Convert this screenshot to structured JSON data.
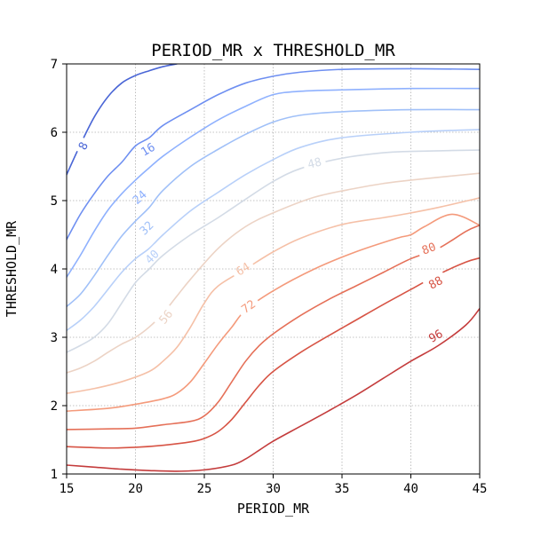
{
  "chart_data": {
    "type": "contour",
    "title": "PERIOD_MR x THRESHOLD_MR",
    "xlabel": "PERIOD_MR",
    "ylabel": "THRESHOLD_MR",
    "xlim": [
      15,
      45
    ],
    "ylim": [
      1,
      7
    ],
    "x_ticks": [
      15,
      20,
      25,
      30,
      35,
      40,
      45
    ],
    "y_ticks": [
      1,
      2,
      3,
      4,
      5,
      6,
      7
    ],
    "grid": true,
    "grid_style": "dotted",
    "colormap": "coolwarm",
    "levels": [
      {
        "value": 8,
        "label": "8",
        "color": "#4a66d6",
        "label_at": [
          16.2,
          5.8
        ],
        "points": [
          [
            15,
            5.38
          ],
          [
            16,
            5.82
          ],
          [
            17,
            6.22
          ],
          [
            18,
            6.52
          ],
          [
            19,
            6.72
          ],
          [
            20,
            6.83
          ],
          [
            21,
            6.9
          ],
          [
            22,
            6.96
          ],
          [
            23,
            7.0
          ]
        ]
      },
      {
        "value": 16,
        "label": "16",
        "color": "#6e8ff1",
        "label_at": [
          20.9,
          5.75
        ],
        "points": [
          [
            15,
            4.43
          ],
          [
            16,
            4.8
          ],
          [
            17,
            5.1
          ],
          [
            18,
            5.36
          ],
          [
            19,
            5.56
          ],
          [
            20,
            5.8
          ],
          [
            21,
            5.92
          ],
          [
            22,
            6.1
          ],
          [
            24,
            6.33
          ],
          [
            26,
            6.55
          ],
          [
            28,
            6.72
          ],
          [
            30,
            6.82
          ],
          [
            32,
            6.88
          ],
          [
            35,
            6.92
          ],
          [
            40,
            6.93
          ],
          [
            45,
            6.92
          ]
        ]
      },
      {
        "value": 24,
        "label": "24",
        "color": "#8fb1fe",
        "label_at": [
          20.3,
          5.05
        ],
        "points": [
          [
            15,
            3.88
          ],
          [
            16,
            4.2
          ],
          [
            17,
            4.55
          ],
          [
            18,
            4.86
          ],
          [
            19,
            5.1
          ],
          [
            20,
            5.3
          ],
          [
            21,
            5.48
          ],
          [
            22,
            5.65
          ],
          [
            24,
            5.93
          ],
          [
            26,
            6.18
          ],
          [
            28,
            6.38
          ],
          [
            30,
            6.55
          ],
          [
            32,
            6.6
          ],
          [
            35,
            6.62
          ],
          [
            40,
            6.64
          ],
          [
            45,
            6.64
          ]
        ]
      },
      {
        "value": 32,
        "label": "32",
        "color": "#a0c0f8",
        "label_at": [
          20.8,
          4.6
        ],
        "points": [
          [
            15,
            3.45
          ],
          [
            16,
            3.63
          ],
          [
            17,
            3.9
          ],
          [
            18,
            4.2
          ],
          [
            19,
            4.48
          ],
          [
            20,
            4.7
          ],
          [
            21,
            4.9
          ],
          [
            22,
            5.15
          ],
          [
            24,
            5.5
          ],
          [
            26,
            5.75
          ],
          [
            28,
            5.97
          ],
          [
            30,
            6.15
          ],
          [
            32,
            6.25
          ],
          [
            35,
            6.3
          ],
          [
            40,
            6.33
          ],
          [
            45,
            6.33
          ]
        ]
      },
      {
        "value": 40,
        "label": "40",
        "color": "#b8d0f9",
        "label_at": [
          21.2,
          4.18
        ],
        "points": [
          [
            15,
            3.1
          ],
          [
            16,
            3.25
          ],
          [
            17,
            3.45
          ],
          [
            18,
            3.7
          ],
          [
            19,
            3.95
          ],
          [
            20,
            4.15
          ],
          [
            21,
            4.3
          ],
          [
            22,
            4.5
          ],
          [
            24,
            4.85
          ],
          [
            26,
            5.12
          ],
          [
            28,
            5.38
          ],
          [
            30,
            5.6
          ],
          [
            32,
            5.78
          ],
          [
            35,
            5.92
          ],
          [
            40,
            6.0
          ],
          [
            45,
            6.04
          ]
        ]
      },
      {
        "value": 48,
        "label": "48",
        "color": "#d3dbe6",
        "label_at": [
          33.0,
          5.55
        ],
        "points": [
          [
            15,
            2.78
          ],
          [
            16,
            2.88
          ],
          [
            17,
            3.0
          ],
          [
            18,
            3.2
          ],
          [
            19,
            3.5
          ],
          [
            20,
            3.8
          ],
          [
            21,
            4.0
          ],
          [
            22,
            4.2
          ],
          [
            24,
            4.5
          ],
          [
            26,
            4.75
          ],
          [
            28,
            5.02
          ],
          [
            30,
            5.28
          ],
          [
            32,
            5.47
          ],
          [
            35,
            5.62
          ],
          [
            38,
            5.7
          ],
          [
            40,
            5.72
          ],
          [
            45,
            5.74
          ]
        ]
      },
      {
        "value": 56,
        "label": "56",
        "color": "#ecd3c5",
        "label_at": [
          22.2,
          3.3
        ],
        "points": [
          [
            15,
            2.48
          ],
          [
            16,
            2.55
          ],
          [
            17,
            2.65
          ],
          [
            18,
            2.78
          ],
          [
            19,
            2.9
          ],
          [
            20,
            3.0
          ],
          [
            21,
            3.15
          ],
          [
            22,
            3.35
          ],
          [
            23,
            3.6
          ],
          [
            24,
            3.85
          ],
          [
            26,
            4.3
          ],
          [
            28,
            4.62
          ],
          [
            30,
            4.82
          ],
          [
            33,
            5.05
          ],
          [
            36,
            5.18
          ],
          [
            38,
            5.25
          ],
          [
            40,
            5.3
          ],
          [
            45,
            5.4
          ]
        ]
      },
      {
        "value": 64,
        "label": "64",
        "color": "#f5c0a7",
        "label_at": [
          27.8,
          4.0
        ],
        "points": [
          [
            15,
            2.18
          ],
          [
            17,
            2.25
          ],
          [
            19,
            2.35
          ],
          [
            21,
            2.5
          ],
          [
            22,
            2.65
          ],
          [
            23,
            2.85
          ],
          [
            24,
            3.15
          ],
          [
            25,
            3.5
          ],
          [
            26,
            3.75
          ],
          [
            28,
            4.0
          ],
          [
            30,
            4.25
          ],
          [
            32,
            4.45
          ],
          [
            35,
            4.65
          ],
          [
            38,
            4.75
          ],
          [
            40,
            4.82
          ],
          [
            42,
            4.9
          ],
          [
            45,
            5.04
          ]
        ]
      },
      {
        "value": 72,
        "label": "72",
        "color": "#f49a7b",
        "label_at": [
          28.2,
          3.45
        ],
        "points": [
          [
            15,
            1.92
          ],
          [
            18,
            1.96
          ],
          [
            20,
            2.02
          ],
          [
            22,
            2.1
          ],
          [
            23,
            2.18
          ],
          [
            24,
            2.35
          ],
          [
            25,
            2.62
          ],
          [
            26,
            2.9
          ],
          [
            27,
            3.15
          ],
          [
            28,
            3.4
          ],
          [
            30,
            3.68
          ],
          [
            33,
            4.0
          ],
          [
            36,
            4.25
          ],
          [
            39,
            4.45
          ],
          [
            40,
            4.5
          ],
          [
            41,
            4.62
          ],
          [
            43,
            4.8
          ],
          [
            45,
            4.64
          ]
        ]
      },
      {
        "value": 80,
        "label": "80",
        "color": "#e57058",
        "label_at": [
          41.3,
          4.3
        ],
        "points": [
          [
            15,
            1.65
          ],
          [
            18,
            1.66
          ],
          [
            20,
            1.67
          ],
          [
            22,
            1.72
          ],
          [
            24,
            1.77
          ],
          [
            25,
            1.85
          ],
          [
            26,
            2.05
          ],
          [
            27,
            2.35
          ],
          [
            28,
            2.65
          ],
          [
            29,
            2.88
          ],
          [
            30,
            3.05
          ],
          [
            32,
            3.32
          ],
          [
            34,
            3.55
          ],
          [
            36,
            3.75
          ],
          [
            38,
            3.95
          ],
          [
            40,
            4.15
          ],
          [
            42,
            4.3
          ],
          [
            44,
            4.55
          ],
          [
            45,
            4.64
          ]
        ]
      },
      {
        "value": 88,
        "label": "88",
        "color": "#d75445",
        "label_at": [
          41.8,
          3.8
        ],
        "points": [
          [
            15,
            1.4
          ],
          [
            18,
            1.38
          ],
          [
            20,
            1.39
          ],
          [
            22,
            1.42
          ],
          [
            24,
            1.47
          ],
          [
            25,
            1.52
          ],
          [
            26,
            1.62
          ],
          [
            27,
            1.8
          ],
          [
            28,
            2.05
          ],
          [
            29,
            2.3
          ],
          [
            30,
            2.5
          ],
          [
            32,
            2.78
          ],
          [
            34,
            3.02
          ],
          [
            36,
            3.25
          ],
          [
            38,
            3.48
          ],
          [
            40,
            3.7
          ],
          [
            42,
            3.92
          ],
          [
            44,
            4.1
          ],
          [
            45,
            4.16
          ]
        ]
      },
      {
        "value": 96,
        "label": "96",
        "color": "#c43c3c",
        "label_at": [
          41.8,
          3.02
        ],
        "points": [
          [
            15,
            1.13
          ],
          [
            17,
            1.1
          ],
          [
            19,
            1.07
          ],
          [
            21,
            1.05
          ],
          [
            23,
            1.04
          ],
          [
            25,
            1.06
          ],
          [
            27,
            1.13
          ],
          [
            28,
            1.22
          ],
          [
            29,
            1.35
          ],
          [
            30,
            1.48
          ],
          [
            32,
            1.7
          ],
          [
            34,
            1.92
          ],
          [
            36,
            2.15
          ],
          [
            38,
            2.4
          ],
          [
            40,
            2.65
          ],
          [
            42,
            2.88
          ],
          [
            44,
            3.18
          ],
          [
            45,
            3.42
          ]
        ]
      }
    ]
  }
}
